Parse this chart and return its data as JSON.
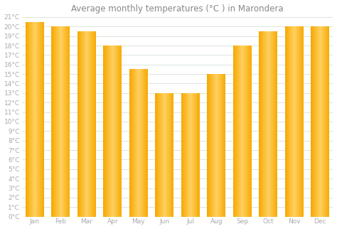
{
  "title": "Average monthly temperatures (°C ) in Marondera",
  "months": [
    "Jan",
    "Feb",
    "Mar",
    "Apr",
    "May",
    "Jun",
    "Jul",
    "Aug",
    "Sep",
    "Oct",
    "Nov",
    "Dec"
  ],
  "values": [
    20.5,
    20.0,
    19.5,
    18.0,
    15.5,
    13.0,
    13.0,
    15.0,
    18.0,
    19.5,
    20.0,
    20.0
  ],
  "bar_color_left": "#F5A800",
  "bar_color_center": "#FFD060",
  "bar_color_right": "#F5A800",
  "ylim": [
    0,
    21
  ],
  "background_color": "#ffffff",
  "plot_bg_color": "#ffffff",
  "grid_color": "#ccddcc",
  "title_fontsize": 8.5,
  "tick_fontsize": 6.5,
  "title_color": "#888888",
  "tick_color": "#aaaaaa",
  "bar_width": 0.72
}
